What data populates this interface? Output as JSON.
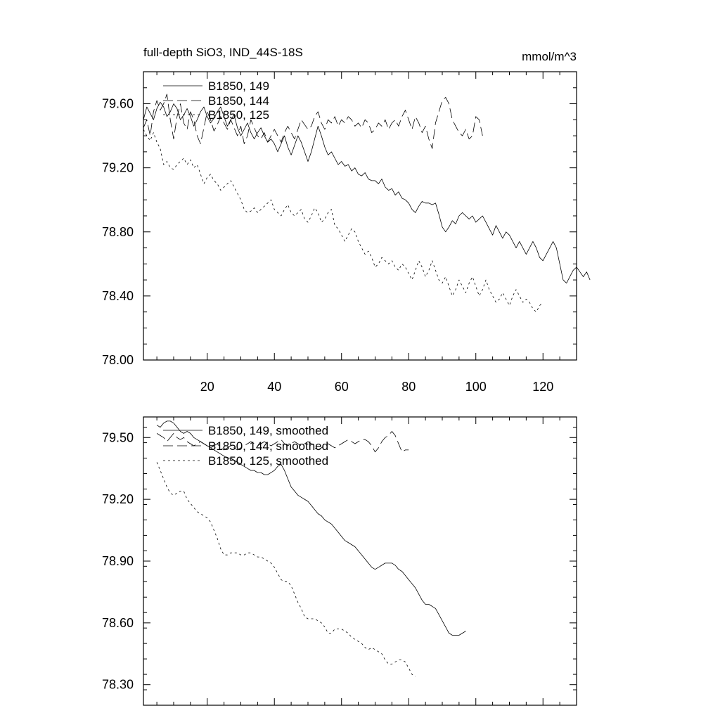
{
  "chart_data": [
    {
      "type": "line",
      "title": "full-depth SiO3, IND_44S-18S",
      "units": "mmol/m^3",
      "xlim": [
        1,
        130
      ],
      "ylim": [
        78.0,
        79.8
      ],
      "xticks": [
        20,
        40,
        60,
        80,
        100,
        120
      ],
      "xtick_labels": [
        "20",
        "40",
        "60",
        "80",
        "100",
        "120"
      ],
      "yticks": [
        78.0,
        78.4,
        78.8,
        79.2,
        79.6
      ],
      "ytick_labels": [
        "78.00",
        "78.40",
        "78.80",
        "79.20",
        "79.60"
      ],
      "legend_position": "top-left",
      "series": [
        {
          "name": "B1850, 149",
          "style": "solid",
          "x_start": 1,
          "values": [
            79.5,
            79.58,
            79.54,
            79.5,
            79.57,
            79.61,
            79.58,
            79.52,
            79.55,
            79.6,
            79.57,
            79.5,
            79.53,
            79.57,
            79.52,
            79.46,
            79.5,
            79.55,
            79.58,
            79.52,
            79.48,
            79.51,
            79.55,
            79.58,
            79.52,
            79.46,
            79.5,
            79.53,
            79.45,
            79.4,
            79.44,
            79.48,
            79.42,
            79.38,
            79.42,
            79.45,
            79.4,
            79.36,
            79.38,
            79.35,
            79.3,
            79.35,
            79.4,
            79.33,
            79.28,
            79.34,
            79.4,
            79.36,
            79.3,
            79.24,
            79.3,
            79.38,
            79.46,
            79.4,
            79.33,
            79.28,
            79.3,
            79.26,
            79.22,
            79.24,
            79.21,
            79.22,
            79.18,
            79.2,
            79.16,
            79.15,
            79.17,
            79.13,
            79.12,
            79.12,
            79.1,
            79.13,
            79.08,
            79.06,
            79.07,
            79.03,
            79.05,
            79.01,
            79.0,
            78.98,
            78.94,
            78.92,
            78.96,
            78.99,
            78.98,
            78.98,
            78.97,
            78.98,
            78.91,
            78.83,
            78.8,
            78.83,
            78.87,
            78.85,
            78.9,
            78.92,
            78.9,
            78.88,
            78.9,
            78.86,
            78.88,
            78.9,
            78.86,
            78.82,
            78.78,
            78.84,
            78.8,
            78.76,
            78.8,
            78.78,
            78.74,
            78.7,
            78.74,
            78.7,
            78.66,
            78.7,
            78.74,
            78.7,
            78.64,
            78.62,
            78.66,
            78.7,
            78.74,
            78.7,
            78.6,
            78.5,
            78.48,
            78.52,
            78.56,
            78.58,
            78.55,
            78.52,
            78.55,
            78.5
          ]
        },
        {
          "name": "B1850, 144",
          "style": "long-dash",
          "x_start": 1,
          "values": [
            79.45,
            79.5,
            79.4,
            79.55,
            79.62,
            79.56,
            79.6,
            79.66,
            79.5,
            79.38,
            79.52,
            79.6,
            79.48,
            79.44,
            79.55,
            79.5,
            79.4,
            79.35,
            79.45,
            79.55,
            79.5,
            79.43,
            79.47,
            79.52,
            79.48,
            79.44,
            79.5,
            79.45,
            79.4,
            79.46,
            79.35,
            79.4,
            79.5,
            79.45,
            79.4,
            79.38,
            79.42,
            79.36,
            79.4,
            79.44,
            79.4,
            79.36,
            79.42,
            79.46,
            79.42,
            79.38,
            79.44,
            79.5,
            79.47,
            79.44,
            79.46,
            79.52,
            79.55,
            79.48,
            79.44,
            79.5,
            79.48,
            79.52,
            79.46,
            79.5,
            79.48,
            79.52,
            79.5,
            79.46,
            79.48,
            79.45,
            79.5,
            79.48,
            79.42,
            79.44,
            79.48,
            79.46,
            79.5,
            79.44,
            79.48,
            79.5,
            79.46,
            79.52,
            79.56,
            79.5,
            79.44,
            79.52,
            79.48,
            79.42,
            79.46,
            79.38,
            79.32,
            79.48,
            79.55,
            79.62,
            79.64,
            79.6,
            79.5,
            79.46,
            79.42,
            79.4,
            79.44,
            79.38,
            79.4,
            79.52,
            79.5,
            79.4
          ]
        },
        {
          "name": "B1850, 125",
          "style": "dotted",
          "x_start": 1,
          "values": [
            79.44,
            79.4,
            79.37,
            79.42,
            79.36,
            79.32,
            79.22,
            79.24,
            79.2,
            79.19,
            79.22,
            79.24,
            79.26,
            79.22,
            79.25,
            79.2,
            79.22,
            79.16,
            79.1,
            79.14,
            79.16,
            79.12,
            79.1,
            79.06,
            79.08,
            79.1,
            79.12,
            79.08,
            79.04,
            79.0,
            78.94,
            78.92,
            78.93,
            78.95,
            78.92,
            78.94,
            78.96,
            78.98,
            79.0,
            78.94,
            78.92,
            78.9,
            78.94,
            78.97,
            78.92,
            78.9,
            78.92,
            78.94,
            78.88,
            78.86,
            78.9,
            78.95,
            78.92,
            78.86,
            78.88,
            78.92,
            78.94,
            78.84,
            78.82,
            78.78,
            78.74,
            78.78,
            78.82,
            78.8,
            78.74,
            78.7,
            78.66,
            78.68,
            78.64,
            78.58,
            78.6,
            78.64,
            78.62,
            78.6,
            78.62,
            78.58,
            78.56,
            78.6,
            78.58,
            78.54,
            78.5,
            78.56,
            78.62,
            78.58,
            78.52,
            78.56,
            78.62,
            78.56,
            78.5,
            78.48,
            78.52,
            78.46,
            78.4,
            78.44,
            78.5,
            78.46,
            78.42,
            78.48,
            78.52,
            78.46,
            78.4,
            78.44,
            78.5,
            78.44,
            78.4,
            78.36,
            78.38,
            78.42,
            78.38,
            78.34,
            78.4,
            78.44,
            78.4,
            78.36,
            78.38,
            78.36,
            78.32,
            78.3,
            78.34,
            78.36
          ]
        }
      ]
    },
    {
      "type": "line",
      "xlim": [
        1,
        130
      ],
      "ylim": [
        78.2,
        79.6
      ],
      "xticks": [
        20,
        40,
        60,
        80,
        100,
        120
      ],
      "xtick_labels": [],
      "yticks": [
        78.3,
        78.6,
        78.9,
        79.2,
        79.5
      ],
      "ytick_labels": [
        "78.30",
        "78.60",
        "78.90",
        "79.20",
        "79.50"
      ],
      "legend_position": "top-left",
      "series": [
        {
          "name": "B1850, 149, smoothed",
          "style": "solid",
          "x_start": 5,
          "values": [
            79.56,
            79.55,
            79.57,
            79.58,
            79.58,
            79.57,
            79.55,
            79.53,
            79.52,
            79.53,
            79.52,
            79.5,
            79.49,
            79.48,
            79.47,
            79.46,
            79.45,
            79.44,
            79.43,
            79.42,
            79.41,
            79.4,
            79.4,
            79.39,
            79.38,
            79.37,
            79.36,
            79.35,
            79.34,
            79.34,
            79.33,
            79.33,
            79.32,
            79.32,
            79.33,
            79.34,
            79.36,
            79.37,
            79.34,
            79.3,
            79.26,
            79.24,
            79.22,
            79.21,
            79.2,
            79.19,
            79.17,
            79.15,
            79.13,
            79.12,
            79.1,
            79.09,
            79.08,
            79.06,
            79.04,
            79.02,
            79.0,
            78.99,
            78.98,
            78.97,
            78.95,
            78.93,
            78.91,
            78.89,
            78.87,
            78.86,
            78.87,
            78.88,
            78.89,
            78.89,
            78.89,
            78.88,
            78.86,
            78.85,
            78.83,
            78.81,
            78.79,
            78.77,
            78.74,
            78.71,
            78.69,
            78.69,
            78.68,
            78.67,
            78.64,
            78.61,
            78.58,
            78.55,
            78.54,
            78.54,
            78.54,
            78.55,
            78.56
          ]
        },
        {
          "name": "B1850, 144, smoothed",
          "style": "long-dash",
          "x_start": 5,
          "values": [
            79.52,
            79.51,
            79.5,
            79.48,
            79.5,
            79.52,
            79.5,
            79.49,
            79.5,
            79.48,
            79.47,
            79.46,
            79.47,
            79.48,
            79.47,
            79.46,
            79.45,
            79.46,
            79.47,
            79.45,
            79.44,
            79.45,
            79.46,
            79.45,
            79.44,
            79.45,
            79.46,
            79.47,
            79.48,
            79.47,
            79.46,
            79.47,
            79.48,
            79.47,
            79.46,
            79.47,
            79.48,
            79.49,
            79.47,
            79.46,
            79.47,
            79.48,
            79.47,
            79.46,
            79.47,
            79.48,
            79.47,
            79.45,
            79.44,
            79.45,
            79.46,
            79.47,
            79.46,
            79.45,
            79.46,
            79.47,
            79.48,
            79.49,
            79.48,
            79.47,
            79.48,
            79.49,
            79.49,
            79.48,
            79.46,
            79.43,
            79.45,
            79.48,
            79.5,
            79.51,
            79.53,
            79.51,
            79.47,
            79.43,
            79.44,
            79.44
          ]
        },
        {
          "name": "B1850, 125, smoothed",
          "style": "dotted",
          "x_start": 5,
          "values": [
            79.38,
            79.34,
            79.3,
            79.26,
            79.23,
            79.22,
            79.23,
            79.24,
            79.24,
            79.2,
            79.18,
            79.16,
            79.14,
            79.13,
            79.12,
            79.11,
            79.09,
            79.05,
            79.01,
            78.96,
            78.93,
            78.93,
            78.94,
            78.94,
            78.94,
            78.93,
            78.93,
            78.94,
            78.94,
            78.93,
            78.92,
            78.92,
            78.91,
            78.9,
            78.89,
            78.87,
            78.84,
            78.81,
            78.8,
            78.8,
            78.78,
            78.74,
            78.7,
            78.67,
            78.63,
            78.62,
            78.62,
            78.62,
            78.61,
            78.6,
            78.58,
            78.55,
            78.55,
            78.57,
            78.57,
            78.57,
            78.56,
            78.55,
            78.53,
            78.52,
            78.51,
            78.5,
            78.48,
            78.47,
            78.48,
            78.47,
            78.46,
            78.45,
            78.42,
            78.4,
            78.4,
            78.41,
            78.42,
            78.42,
            78.41,
            78.38,
            78.35,
            78.34
          ]
        }
      ]
    }
  ]
}
